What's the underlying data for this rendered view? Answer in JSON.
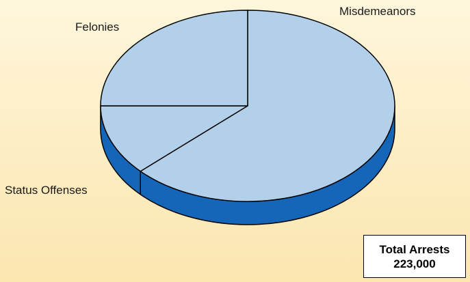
{
  "chart_data": {
    "type": "pie",
    "title": "",
    "slices": [
      {
        "label": "Misdemeanors",
        "share": 0.63
      },
      {
        "label": "Status Offenses",
        "share": 0.12
      },
      {
        "label": "Felonies",
        "share": 0.25
      }
    ],
    "style": "3d",
    "colors": {
      "top": "#b3d0ea",
      "side": "#1565b8",
      "outline": "#000000"
    },
    "total": {
      "label": "Total Arrests",
      "value": "223,000"
    }
  }
}
